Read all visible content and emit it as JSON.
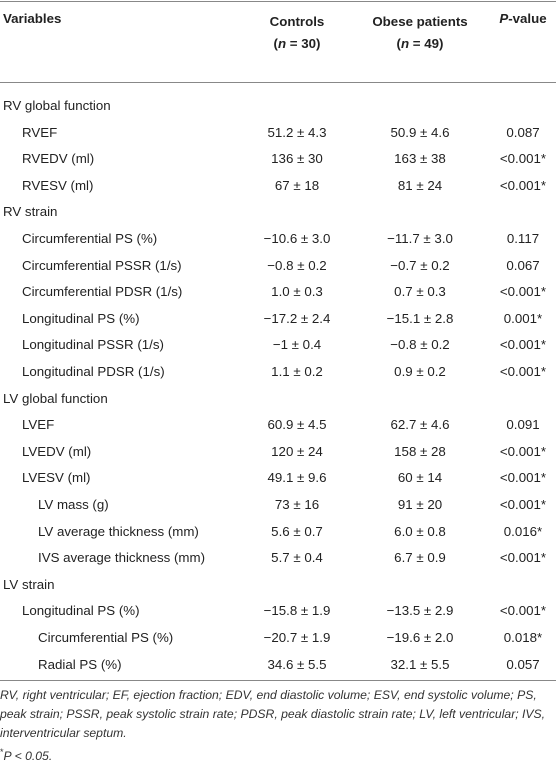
{
  "header": {
    "variables": "Variables",
    "controls": {
      "title": "Controls",
      "n": [
        "(",
        "n",
        " = 30)"
      ]
    },
    "obese": {
      "title": "Obese patients",
      "n": [
        "(",
        "n",
        " = 49)"
      ]
    },
    "p_value": [
      "P",
      "-value"
    ]
  },
  "sections": [
    {
      "title": "RV global function",
      "rows": [
        {
          "label": "RVEF",
          "controls": "51.2 ± 4.3",
          "obese": "50.9 ± 4.6",
          "p": "0.087"
        },
        {
          "label": "RVEDV (ml)",
          "controls": "136 ± 30",
          "obese": "163 ± 38",
          "p": "<0.001*"
        },
        {
          "label": "RVESV (ml)",
          "controls": "67 ± 18",
          "obese": "81 ± 24",
          "p": "<0.001*"
        }
      ]
    },
    {
      "title": "RV strain",
      "rows": [
        {
          "label": "Circumferential PS (%)",
          "controls": "−10.6 ± 3.0",
          "obese": "−11.7 ± 3.0",
          "p": "0.117"
        },
        {
          "label": "Circumferential PSSR (1/s)",
          "controls": "−0.8 ± 0.2",
          "obese": "−0.7 ± 0.2",
          "p": "0.067"
        },
        {
          "label": "Circumferential PDSR (1/s)",
          "controls": "1.0 ± 0.3",
          "obese": "0.7 ± 0.3",
          "p": "<0.001*"
        },
        {
          "label": "Longitudinal PS (%)",
          "controls": "−17.2 ± 2.4",
          "obese": "−15.1 ± 2.8",
          "p": "0.001*"
        },
        {
          "label": "Longitudinal PSSR (1/s)",
          "controls": "−1 ± 0.4",
          "obese": "−0.8 ± 0.2",
          "p": "<0.001*"
        },
        {
          "label": "Longitudinal PDSR (1/s)",
          "controls": "1.1 ± 0.2",
          "obese": "0.9 ± 0.2",
          "p": "<0.001*"
        }
      ]
    },
    {
      "title": "LV global function",
      "rows": [
        {
          "label": "LVEF",
          "controls": "60.9 ± 4.5",
          "obese": "62.7 ± 4.6",
          "p": "0.091"
        },
        {
          "label": "LVEDV (ml)",
          "controls": "120 ± 24",
          "obese": "158 ± 28",
          "p": "<0.001*"
        },
        {
          "label": "LVESV (ml)",
          "controls": "49.1 ± 9.6",
          "obese": "60 ± 14",
          "p": "<0.001*",
          "subrows": [
            {
              "label": "LV mass (g)",
              "controls": "73 ± 16",
              "obese": "91 ± 20",
              "p": "<0.001*"
            },
            {
              "label": "LV average thickness (mm)",
              "controls": "5.6 ± 0.7",
              "obese": "6.0 ± 0.8",
              "p": "0.016*"
            },
            {
              "label": "IVS average thickness (mm)",
              "controls": "5.7 ± 0.4",
              "obese": "6.7 ± 0.9",
              "p": "<0.001*"
            }
          ]
        }
      ]
    },
    {
      "title": "LV strain",
      "rows": [
        {
          "label": "Longitudinal PS (%)",
          "controls": "−15.8 ± 1.9",
          "obese": "−13.5 ± 2.9",
          "p": "<0.001*",
          "subrows": [
            {
              "label": "Circumferential PS (%)",
              "controls": "−20.7 ± 1.9",
              "obese": "−19.6 ± 2.0",
              "p": "0.018*"
            },
            {
              "label": "Radial PS (%)",
              "controls": "34.6 ± 5.5",
              "obese": "32.1 ± 5.5",
              "p": "0.057"
            }
          ]
        }
      ]
    }
  ],
  "footnote": {
    "abbreviations": "RV, right ventricular; EF, ejection fraction; EDV, end diastolic volume; ESV, end systolic volume; PS, peak strain; PSSR, peak systolic strain rate; PDSR, peak diastolic strain rate; LV, left ventricular; IVS, interventricular septum.",
    "significance": [
      "*",
      "P",
      " < 0.05."
    ]
  }
}
